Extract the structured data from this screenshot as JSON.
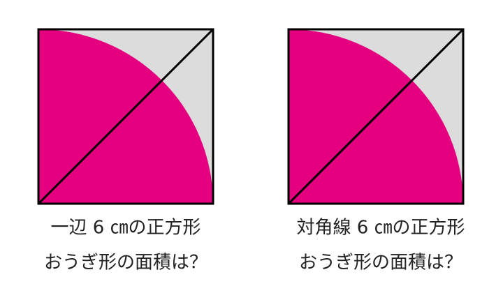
{
  "figures": [
    {
      "caption_lines": [
        "一辺 6 ㎝の正方形",
        "おうぎ形の面積は？"
      ]
    },
    {
      "caption_lines": [
        "対角線 6 ㎝の正方形",
        "おうぎ形の面積は？"
      ]
    }
  ]
}
